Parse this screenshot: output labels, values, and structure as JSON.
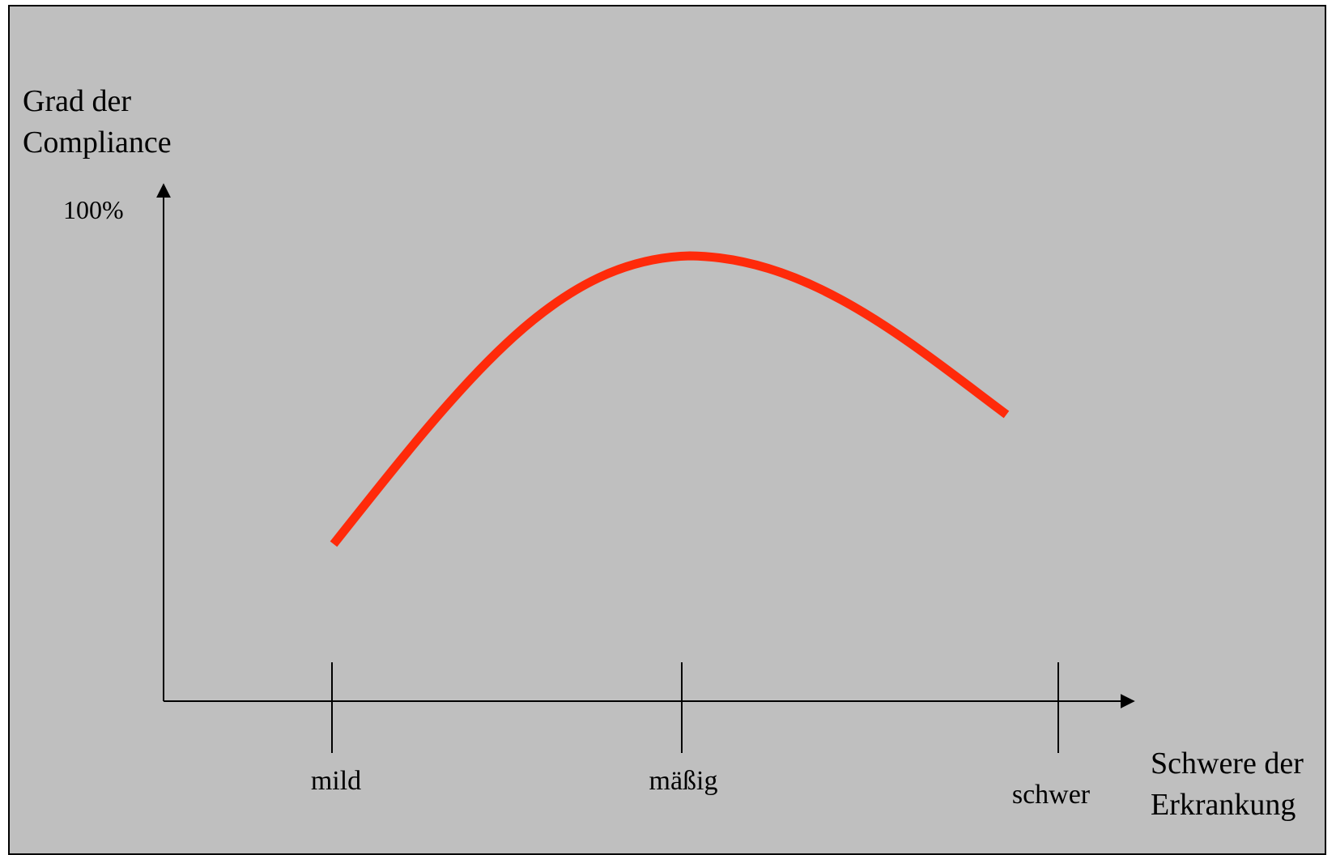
{
  "y_axis": {
    "title_line1": "Grad der",
    "title_line2": "Compliance",
    "top_label": "100%"
  },
  "x_axis": {
    "title_line1": "Schwere der",
    "title_line2": "Erkrankung",
    "ticks": [
      "mild",
      "mäßig",
      "schwer"
    ]
  },
  "colors": {
    "background": "#bfbfbf",
    "curve": "#ff2a0a",
    "axis": "#000000"
  }
}
